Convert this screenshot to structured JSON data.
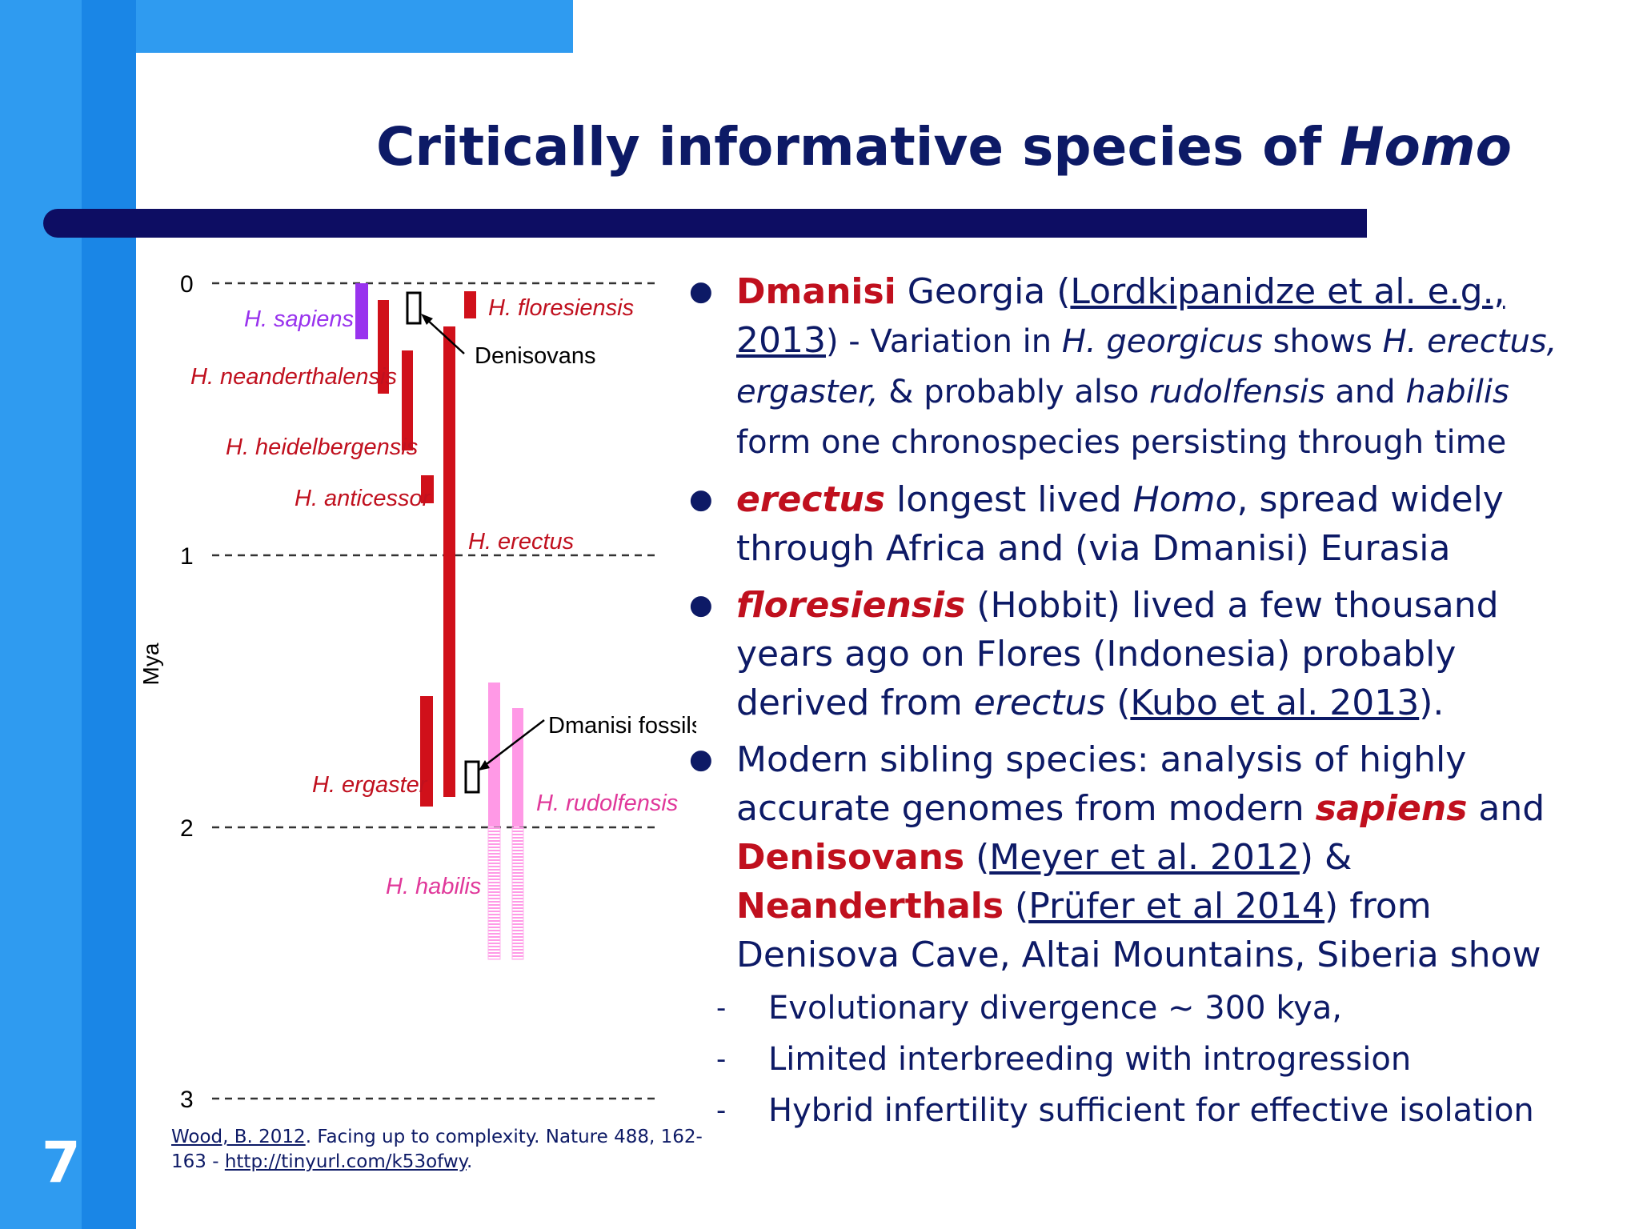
{
  "slide": {
    "page_number": "7",
    "title_prefix": "Critically informative species of",
    "title_italic": "Homo"
  },
  "diagram": {
    "axis_label": "Mya",
    "ticks": [
      "0",
      "1",
      "2",
      "3"
    ],
    "labels": {
      "sapiens": "H. sapiens",
      "neanderthalensis": "H. neanderthalensis",
      "heidelbergensis": "H. heidelbergensis",
      "anticessor": "H. anticessor",
      "floresiensis": "H. floresiensis",
      "denisovans": "Denisovans",
      "erectus": "H. erectus",
      "dmanisi": "Dmanisi fossils",
      "ergaster": "H. ergaster",
      "rudolfensis": "H. rudolfensis",
      "habilis": "H. habilis"
    },
    "colors": {
      "sapiens": "#9933ee",
      "red_bars": "#d0101a",
      "pink_bars": "#ff99e6",
      "pink_label": "#e0389a"
    }
  },
  "reference": {
    "author": "Wood, B. 2012",
    "text": ". Facing up to complexity. Nature 488, 162-163 - ",
    "url": "http://tinyurl.com/k53ofwy",
    "end": "."
  },
  "bullets": {
    "b1": {
      "dmanisi": "Dmanisi",
      "georgia": " Georgia (",
      "ref_a": "Lordkipanidze et al. e.g.,",
      "ref_b": "2013",
      "t1": ") - Variation in ",
      "georgicus": "H. georgicus",
      "t2": " shows ",
      "erectus": "H. erectus,",
      "ergaster": "ergaster,",
      "t3": " & probably also ",
      "rudolfensis": "rudolfensis",
      "t4": " and ",
      "habilis": "habilis",
      "t5": "form one chronospecies persisting through time"
    },
    "b2": {
      "erectus": "erectus",
      "t1": " longest lived ",
      "homo": "Homo",
      "t2": ", spread widely",
      "t3": "through Africa and (via Dmanisi) Eurasia"
    },
    "b3": {
      "floresiensis": "floresiensis",
      "t1": " (Hobbit) lived a few thousand",
      "t2": "years ago on Flores (Indonesia) probably",
      "t3": "derived from ",
      "erectus": "erectus",
      "t4": " (",
      "ref": "Kubo et al. 2013",
      "t5": ")."
    },
    "b4": {
      "t1": "Modern sibling species: analysis of highly",
      "t2": "accurate genomes from modern ",
      "sapiens": "sapiens",
      "t3": " and",
      "denisovans": "Denisovans",
      "t4": " (",
      "ref1": "Meyer et al. 2012",
      "t5": ") &",
      "neanderthals": "Neanderthals",
      "t6": " (",
      "ref2": "Prüfer et al 2014",
      "t7": ") from",
      "t8": "Denisova Cave, Altai Mountains, Siberia show"
    },
    "sub": [
      "Evolutionary divergence ~ 300 kya,",
      "Limited interbreeding with introgression",
      "Hybrid infertility sufficient for effective isolation"
    ]
  }
}
